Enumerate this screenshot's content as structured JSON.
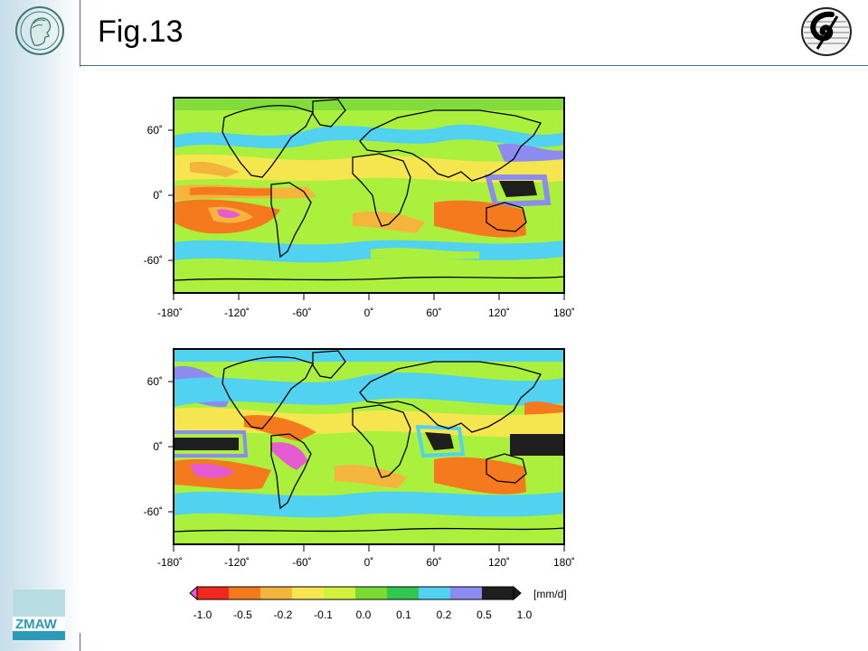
{
  "title": "Fig.13",
  "map_top": {
    "lat_labels": [
      "60˚",
      "0˚",
      "-60˚"
    ],
    "lon_labels": [
      "-180˚",
      "-120˚",
      "-60˚",
      "0˚",
      "60˚",
      "120˚",
      "180˚"
    ]
  },
  "map_bottom": {
    "lat_labels": [
      "60˚",
      "0˚",
      "-60˚"
    ],
    "lon_labels": [
      "-180˚",
      "-120˚",
      "-60˚",
      "0˚",
      "60˚",
      "120˚",
      "180˚"
    ]
  },
  "colorbar": {
    "unit": "[mm/d]",
    "labels": [
      "-1.0",
      "-0.5",
      "-0.2",
      "-0.1",
      "0.0",
      "0.1",
      "0.2",
      "0.5",
      "1.0"
    ],
    "colors": [
      "#f0281e",
      "#f57a1e",
      "#f5b43c",
      "#f5e650",
      "#d2f03c",
      "#78dc32",
      "#32c850",
      "#50d2f0",
      "#8c8cf0",
      "#1e1e1e"
    ]
  },
  "colors": {
    "ocean_green": "#aaf03c",
    "land_line": "#000000"
  },
  "logos": {
    "left": "max-planck-head-icon",
    "right": "dkrz-swirl-icon",
    "bottom": "zmaw-icon",
    "bottom_text": "ZMAW"
  }
}
